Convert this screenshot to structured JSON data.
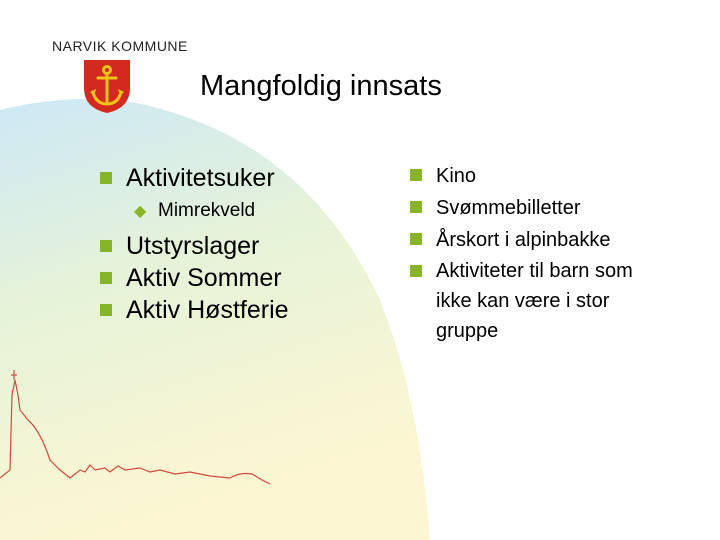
{
  "header": {
    "org_name": "NARVIK KOMMUNE",
    "crest_icon": "anchor-crest-icon"
  },
  "slide": {
    "title": "Mangfoldig innsats"
  },
  "left_list": {
    "items": [
      {
        "label": "Aktivitetsuker"
      },
      {
        "label": "Mimrekveld"
      },
      {
        "label": "Utstyrslager"
      },
      {
        "label": "Aktiv Sommer"
      },
      {
        "label": "Aktiv Høstferie"
      }
    ]
  },
  "right_list": {
    "items": [
      {
        "label": "Kino"
      },
      {
        "label": "Svømmebilletter"
      },
      {
        "label": "Årskort i alpinbakke"
      },
      {
        "label_line1": "Aktiviteter til barn som",
        "label_line2": "ikke kan være i stor",
        "label_line3": "gruppe"
      }
    ]
  },
  "colors": {
    "bullet": "#86b52a",
    "background_gradient_top": "#cfe6f5",
    "background_gradient_bottom": "#fdf3c4",
    "crest_red": "#d22a1e",
    "crest_gold": "#f0c419",
    "skyline": "#d14a3c"
  }
}
